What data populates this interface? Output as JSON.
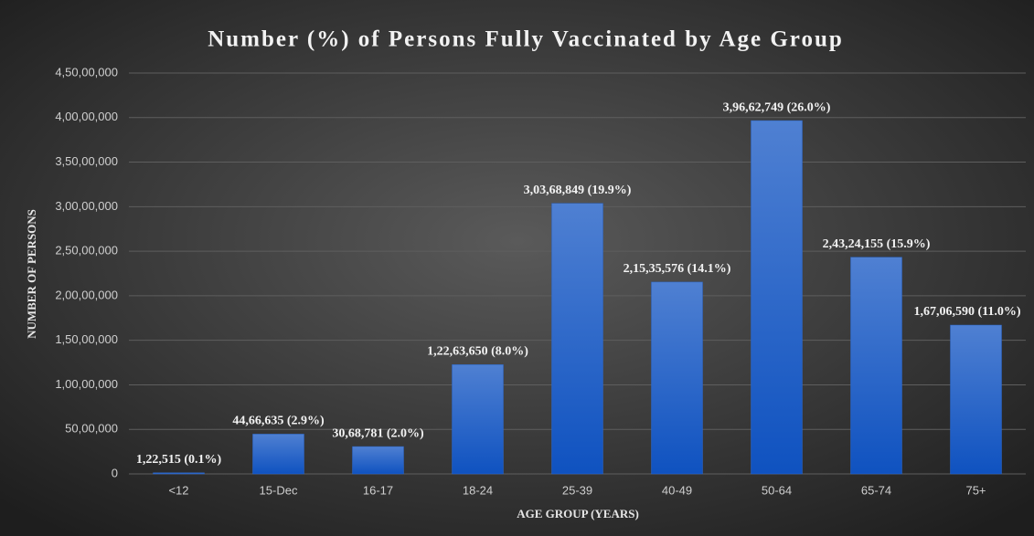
{
  "chart_data": {
    "type": "bar",
    "title": "Number (%) of Persons Fully Vaccinated by Age Group",
    "x_label": "AGE GROUP (YEARS)",
    "y_label": "NUMBER OF PERSONS",
    "categories": [
      "<12",
      "15-Dec",
      "16-17",
      "18-24",
      "25-39",
      "40-49",
      "50-64",
      "65-74",
      "75+"
    ],
    "values": [
      122515,
      4466635,
      3068781,
      12263650,
      30368849,
      21535576,
      39662749,
      24324155,
      16706590
    ],
    "value_labels": [
      "1,22,515 (0.1%)",
      "44,66,635 (2.9%)",
      "30,68,781 (2.0%)",
      "1,22,63,650 (8.0%)",
      "3,03,68,849 (19.9%)",
      "2,15,35,576 (14.1%)",
      "3,96,62,749 (26.0%)",
      "2,43,24,155 (15.9%)",
      "1,67,06,590 (11.0%)"
    ],
    "color": "#2a67cc",
    "ylim": [
      0,
      45000000
    ],
    "yticks": [
      0,
      {
        "value": 5000000,
        "label": "50,00,000"
      },
      {
        "value": 10000000,
        "label": "1,00,00,000"
      },
      {
        "value": 15000000,
        "label": "1,50,00,000"
      },
      {
        "value": 20000000,
        "label": "2,00,00,000"
      },
      {
        "value": 25000000,
        "label": "2,50,00,000"
      },
      {
        "value": 30000000,
        "label": "3,00,00,000"
      },
      {
        "value": 35000000,
        "label": "3,50,00,000"
      },
      {
        "value": 40000000,
        "label": "4,00,00,000"
      },
      {
        "value": 45000000,
        "label": "4,50,00,000"
      }
    ],
    "grid": true
  }
}
